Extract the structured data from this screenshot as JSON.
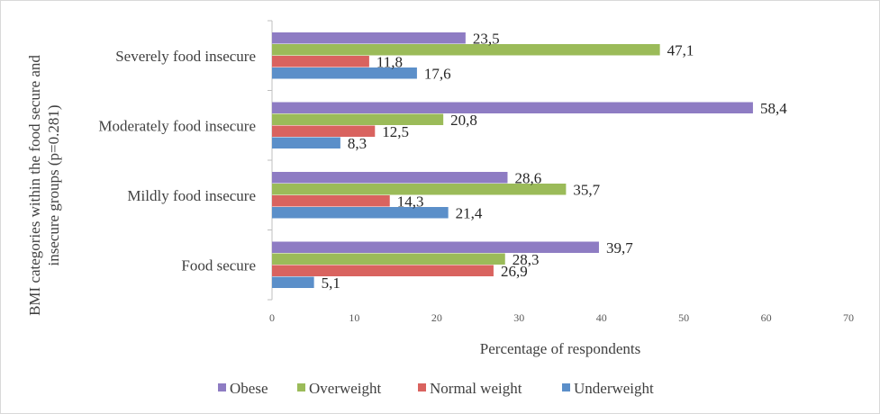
{
  "chart_data": {
    "type": "bar",
    "orientation": "horizontal",
    "categories": [
      "Severely food insecure",
      "Moderately food insecure",
      "Mildly food insecure",
      "Food secure"
    ],
    "series": [
      {
        "name": "Obese",
        "color": "#8e7cc3",
        "values": [
          23.5,
          58.4,
          28.6,
          39.7
        ],
        "labels": [
          "23,5",
          "58,4",
          "28,6",
          "39,7"
        ]
      },
      {
        "name": "Overweight",
        "color": "#9bbb59",
        "values": [
          47.1,
          20.8,
          35.7,
          28.3
        ],
        "labels": [
          "47,1",
          "20,8",
          "35,7",
          "28,3"
        ]
      },
      {
        "name": "Normal weight",
        "color": "#d9635f",
        "values": [
          11.8,
          12.5,
          14.3,
          26.9
        ],
        "labels": [
          "11,8",
          "12,5",
          "14,3",
          "26,9"
        ]
      },
      {
        "name": "Underweight",
        "color": "#5b8fc9",
        "values": [
          17.6,
          8.3,
          21.4,
          5.1
        ],
        "labels": [
          "17,6",
          "8,3",
          "21,4",
          "5,1"
        ]
      }
    ],
    "xlabel": "Percentage of respondents",
    "ylabel_lines": [
      "BMI categories within the food secure and",
      "insecure groups (p=0.281)"
    ],
    "xlim": [
      0,
      70
    ],
    "xticks": [
      0,
      10,
      20,
      30,
      40,
      50,
      60,
      70
    ],
    "grid": false,
    "legend_position": "bottom"
  }
}
